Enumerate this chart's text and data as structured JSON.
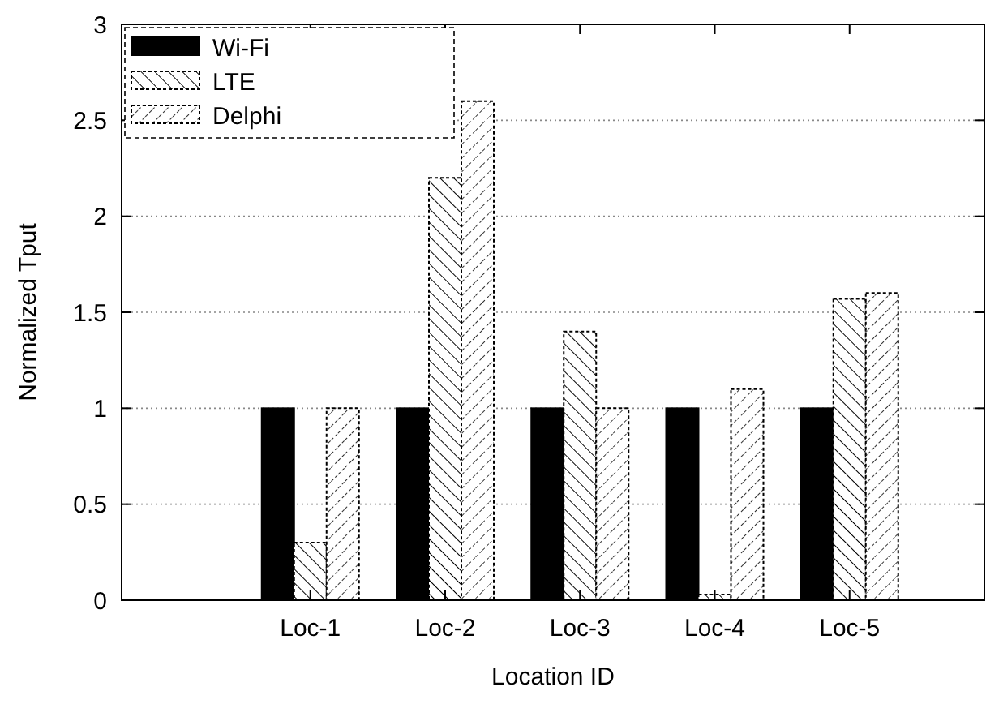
{
  "chart_data": {
    "type": "bar",
    "xlabel": "Location ID",
    "ylabel": "Normalized Tput",
    "categories": [
      "Loc-1",
      "Loc-2",
      "Loc-3",
      "Loc-4",
      "Loc-5"
    ],
    "series": [
      {
        "name": "Wi-Fi",
        "color": "#000000",
        "values": [
          1,
          1,
          1,
          1,
          1
        ]
      },
      {
        "name": "LTE",
        "color": "#000000",
        "values": [
          0.3,
          2.2,
          1.4,
          0.03,
          1.57
        ]
      },
      {
        "name": "Delphi",
        "color": "#000000",
        "values": [
          1,
          2.6,
          1,
          1.1,
          1.6
        ]
      }
    ],
    "ylim": [
      0,
      3
    ],
    "yticks": [
      0,
      {
        "value": 0.5,
        "label": "0.5"
      },
      1,
      {
        "value": 1.5,
        "label": "1.5"
      },
      2,
      {
        "value": 2.5,
        "label": "2.5"
      },
      3
    ],
    "grid": "y",
    "legend": "top left"
  }
}
